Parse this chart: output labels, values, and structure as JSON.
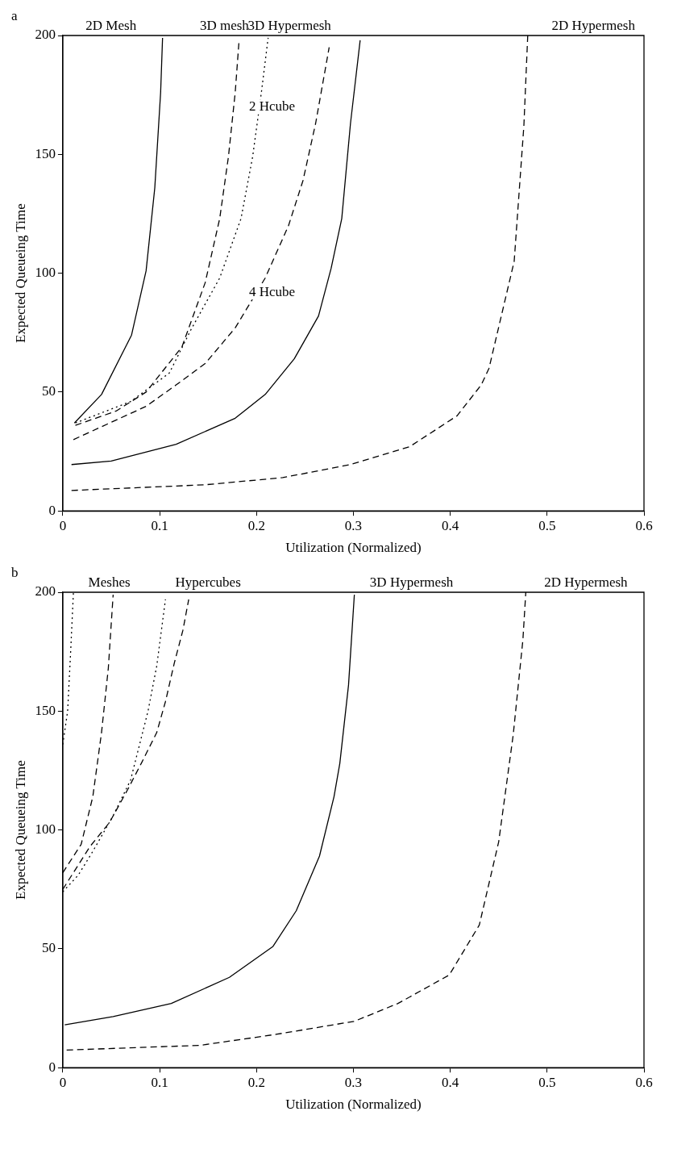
{
  "chart_data": [
    {
      "type": "line",
      "title": "a",
      "xlabel": "Utilization (Normalized)",
      "ylabel": "Expected Queueing Time",
      "xlim": [
        0,
        0.6
      ],
      "ylim": [
        0,
        200
      ],
      "xticks": [
        0,
        0.1,
        0.2,
        0.3,
        0.4,
        0.5,
        0.6
      ],
      "yticks": [
        0,
        50,
        100,
        150,
        200
      ],
      "series": [
        {
          "color": "#000000",
          "line_style": "solid",
          "x": [
            0.012,
            0.04,
            0.071,
            0.086,
            0.095,
            0.101,
            0.103
          ],
          "values": [
            37,
            49,
            74,
            101,
            136,
            176,
            199
          ]
        },
        {
          "color": "#000000",
          "line_style": "dashed",
          "x": [
            0.013,
            0.055,
            0.086,
            0.123,
            0.147,
            0.162,
            0.171,
            0.178,
            0.182
          ],
          "values": [
            36,
            42,
            50,
            69,
            96,
            123,
            149,
            176,
            198
          ]
        },
        {
          "color": "#000000",
          "line_style": "dotted",
          "x": [
            0.013,
            0.07,
            0.11,
            0.132,
            0.162,
            0.184,
            0.196,
            0.205,
            0.212
          ],
          "values": [
            37,
            46,
            58,
            76,
            98,
            123,
            149,
            176,
            199
          ]
        },
        {
          "color": "#000000",
          "line_style": "dashed",
          "x": [
            0.011,
            0.086,
            0.117,
            0.147,
            0.178,
            0.209,
            0.233,
            0.248,
            0.261,
            0.275
          ],
          "values": [
            30,
            44,
            53,
            62,
            77,
            98,
            120,
            139,
            163,
            195
          ]
        },
        {
          "color": "#000000",
          "line_style": "solid",
          "x": [
            0.009,
            0.05,
            0.117,
            0.178,
            0.209,
            0.239,
            0.264,
            0.277,
            0.288,
            0.297,
            0.307
          ],
          "values": [
            19.5,
            21,
            28,
            39,
            49,
            64,
            82,
            102,
            123,
            163,
            198
          ]
        },
        {
          "color": "#000000",
          "line_style": "dashed",
          "x": [
            0.009,
            0.147,
            0.227,
            0.297,
            0.358,
            0.407,
            0.432,
            0.44,
            0.466,
            0.476,
            0.48
          ],
          "values": [
            8.6,
            11,
            14,
            19.5,
            27,
            40,
            53,
            60,
            105,
            162,
            200
          ]
        }
      ],
      "annotations": [
        "2D Mesh",
        "3D mesh",
        "3D Hypermesh",
        "2D Hypermesh",
        "2 Hcube",
        "4 Hcube"
      ]
    },
    {
      "type": "line",
      "title": "b",
      "xlabel": "Utilization (Normalized)",
      "ylabel": "Expected Queueing Time",
      "xlim": [
        0,
        0.6
      ],
      "ylim": [
        0,
        200
      ],
      "xticks": [
        0,
        0.1,
        0.2,
        0.3,
        0.4,
        0.5,
        0.6
      ],
      "yticks": [
        0,
        50,
        100,
        150,
        200
      ],
      "series": [
        {
          "color": "#000000",
          "line_style": "dotted",
          "x": [
            0,
            0.005,
            0.008,
            0.011
          ],
          "values": [
            136,
            150,
            174,
            200
          ]
        },
        {
          "color": "#000000",
          "line_style": "dashed",
          "x": [
            0,
            0.019,
            0.031,
            0.04,
            0.047,
            0.052
          ],
          "values": [
            82,
            94,
            114,
            141,
            168,
            199
          ]
        },
        {
          "color": "#000000",
          "line_style": "dotted",
          "x": [
            0,
            0.016,
            0.031,
            0.052,
            0.07,
            0.088,
            0.097,
            0.106
          ],
          "values": [
            74,
            81,
            91,
            106,
            121,
            150,
            169,
            197
          ]
        },
        {
          "color": "#000000",
          "line_style": "dashed",
          "x": [
            0,
            0.028,
            0.048,
            0.067,
            0.081,
            0.097,
            0.106,
            0.115,
            0.124,
            0.13
          ],
          "values": [
            75,
            93,
            103,
            117,
            128,
            141,
            154,
            170,
            184,
            197
          ]
        },
        {
          "color": "#000000",
          "line_style": "solid",
          "x": [
            0.002,
            0.052,
            0.112,
            0.172,
            0.217,
            0.241,
            0.265,
            0.28,
            0.286,
            0.295,
            0.301
          ],
          "values": [
            18,
            21.5,
            27,
            38,
            51,
            66,
            89,
            114,
            128,
            161,
            199
          ]
        },
        {
          "color": "#000000",
          "line_style": "dashed",
          "x": [
            0.004,
            0.142,
            0.22,
            0.301,
            0.346,
            0.399,
            0.43,
            0.45,
            0.465,
            0.475,
            0.478
          ],
          "values": [
            7.4,
            9.4,
            14,
            19.5,
            27,
            39,
            60,
            95,
            140,
            180,
            200
          ]
        }
      ],
      "annotations": [
        "Meshes",
        "Hypercubes",
        "3D Hypermesh",
        "2D Hypermesh"
      ]
    }
  ]
}
